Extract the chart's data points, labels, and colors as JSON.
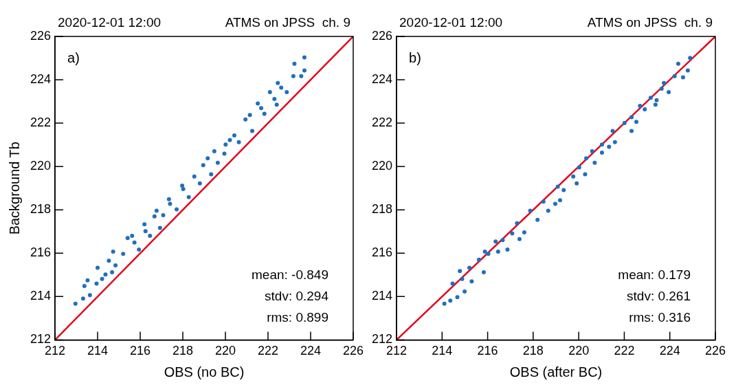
{
  "chart_data": [
    {
      "type": "scatter",
      "title": "2020-12-01 12:00",
      "subtitle": "ATMS on JPSS  ch. 9",
      "xlabel": "OBS (no BC)",
      "ylabel": "Background Tb",
      "xlim": [
        212,
        226
      ],
      "ylim": [
        212,
        226
      ],
      "xticks": [
        212,
        214,
        216,
        218,
        220,
        222,
        224,
        226
      ],
      "yticks": [
        212,
        214,
        216,
        218,
        220,
        222,
        224,
        226
      ],
      "grid": false,
      "legend": false,
      "annotations": [
        "a)",
        "mean: -0.849",
        "stdv: 0.294",
        "rms: 0.899"
      ],
      "series": [
        {
          "type": "scatter",
          "marker": "circle",
          "color": "#1f6fbf",
          "x": [
            212.96,
            213.32,
            213.64,
            213.38,
            213.95,
            214.0,
            214.37,
            214.53,
            214.84,
            214.73,
            215.2,
            215.41,
            215.73,
            215.94,
            216.2,
            216.46,
            216.77,
            217.08,
            216.93,
            217.35,
            217.71,
            217.97,
            218.28,
            218.54,
            218.8,
            218.96,
            219.33,
            219.48,
            219.64,
            220.01,
            219.95,
            220.42,
            220.63,
            220.94,
            221.26,
            221.52,
            221.83,
            222.09,
            222.41,
            222.46,
            222.88,
            223.19,
            223.24,
            223.56,
            223.71,
            223.71,
            214.21,
            213.53,
            214.68,
            215.62,
            216.25,
            216.67,
            217.4,
            218.02,
            219.17,
            220.21,
            221.15,
            221.68,
            222.3,
            222.62
          ],
          "values": [
            213.67,
            213.91,
            214.07,
            214.49,
            214.6,
            215.33,
            215.02,
            215.65,
            215.44,
            216.07,
            215.97,
            216.7,
            216.49,
            216.17,
            217.33,
            216.8,
            217.96,
            217.75,
            217.17,
            218.49,
            218.02,
            219.12,
            218.59,
            219.54,
            219.22,
            220.06,
            219.64,
            220.7,
            220.17,
            221.01,
            220.59,
            221.43,
            221.12,
            222.17,
            221.64,
            222.91,
            222.43,
            223.43,
            222.85,
            223.85,
            223.43,
            224.17,
            224.74,
            224.17,
            225.03,
            224.43,
            214.81,
            214.75,
            215.12,
            216.8,
            217.02,
            217.7,
            218.28,
            218.96,
            220.38,
            221.22,
            222.38,
            222.69,
            223.11,
            223.64
          ]
        },
        {
          "type": "line",
          "marker": "none",
          "color": "#e3001b",
          "x": [
            212,
            226
          ],
          "values": [
            212,
            226
          ]
        }
      ]
    },
    {
      "type": "scatter",
      "title": "2020-12-01 12:00",
      "subtitle": "ATMS on JPSS  ch. 9",
      "xlabel": "OBS (after BC)",
      "xlim": [
        212,
        226
      ],
      "ylim": [
        212,
        226
      ],
      "xticks": [
        212,
        214,
        216,
        218,
        220,
        222,
        224,
        226
      ],
      "yticks": [
        212,
        214,
        216,
        218,
        220,
        222,
        224,
        226
      ],
      "grid": false,
      "legend": false,
      "annotations": [
        "b)",
        "mean: 0.179",
        "stdv: 0.261",
        "rms: 0.316"
      ],
      "series": [
        {
          "type": "scatter",
          "marker": "circle",
          "color": "#1f6fbf",
          "x": [
            214.1,
            214.36,
            214.67,
            214.99,
            214.46,
            214.88,
            215.3,
            214.78,
            215.2,
            215.83,
            215.62,
            216.03,
            216.46,
            215.88,
            216.66,
            216.87,
            216.35,
            217.08,
            217.4,
            217.29,
            217.61,
            217.87,
            218.19,
            218.45,
            218.66,
            218.97,
            219.08,
            219.34,
            219.18,
            219.76,
            219.91,
            220.02,
            220.28,
            220.33,
            220.59,
            220.7,
            221.02,
            221.02,
            221.33,
            221.49,
            221.59,
            222.01,
            222.32,
            222.32,
            222.53,
            222.69,
            222.9,
            223.16,
            223.42,
            223.37,
            223.74,
            223.64,
            223.95,
            224.21,
            224.58,
            224.37,
            224.89,
            224.79
          ],
          "values": [
            213.67,
            213.81,
            213.97,
            214.23,
            214.6,
            214.81,
            214.7,
            215.18,
            215.33,
            215.12,
            215.7,
            215.97,
            216.07,
            216.07,
            216.6,
            216.17,
            216.54,
            216.91,
            216.65,
            217.38,
            216.96,
            217.96,
            217.54,
            218.38,
            217.96,
            218.28,
            219.07,
            218.91,
            218.44,
            219.54,
            219.22,
            219.96,
            219.64,
            220.38,
            220.7,
            220.17,
            221.01,
            220.64,
            220.91,
            221.64,
            221.12,
            222.0,
            221.64,
            222.27,
            222.06,
            222.8,
            222.64,
            223.17,
            223.06,
            222.85,
            223.85,
            223.59,
            223.43,
            224.17,
            224.11,
            224.74,
            225.01,
            224.43
          ]
        },
        {
          "type": "line",
          "marker": "none",
          "color": "#e3001b",
          "x": [
            212,
            226
          ],
          "values": [
            212,
            226
          ]
        }
      ]
    }
  ]
}
